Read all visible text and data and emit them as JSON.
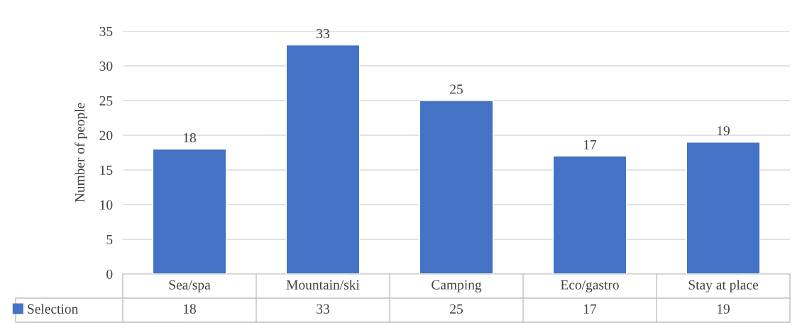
{
  "chart_data": {
    "type": "bar",
    "ylabel": "Number of people",
    "categories": [
      "Sea/spa",
      "Mountain/ski",
      "Camping",
      "Eco/gastro",
      "Stay at place"
    ],
    "series": [
      {
        "name": "Selection",
        "color": "#4472c4",
        "values": [
          18,
          33,
          25,
          17,
          19
        ]
      }
    ],
    "annotations": [
      "18",
      "33",
      "25",
      "17",
      "19"
    ],
    "ylim": [
      0,
      35
    ],
    "yticks": [
      0,
      5,
      10,
      15,
      20,
      25,
      30,
      35
    ],
    "grid": "y",
    "data_labels": true,
    "legend": "bottom left"
  }
}
